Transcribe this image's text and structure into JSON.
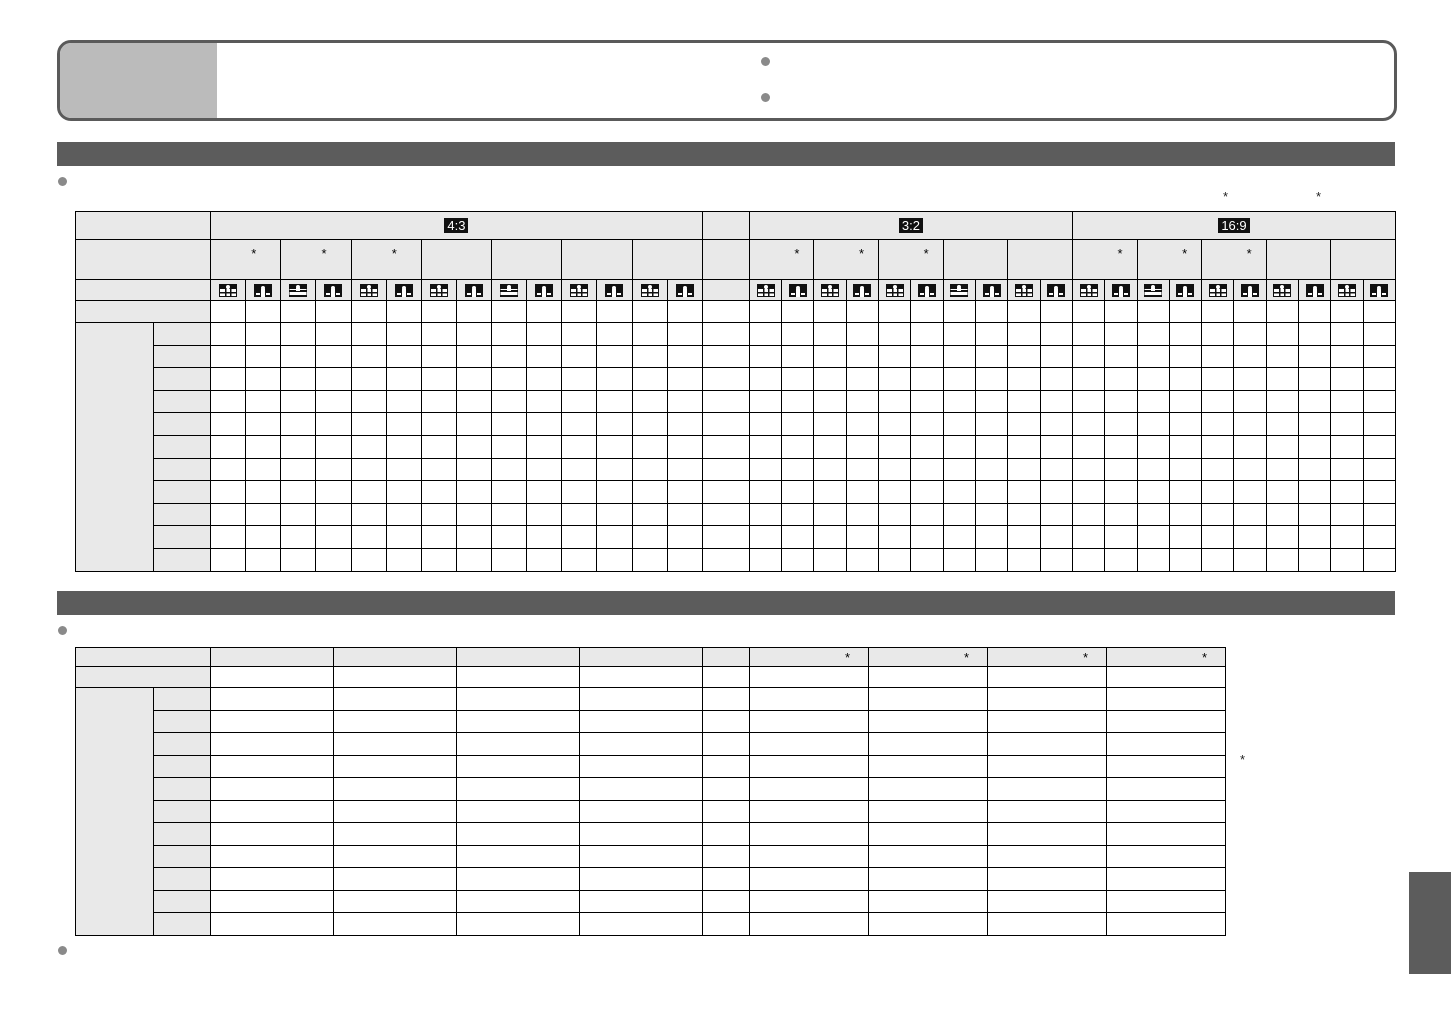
{
  "top_box": {
    "bullets": 2
  },
  "section1": {
    "bar_color": "#5c5c5c",
    "note_bullet": true,
    "footnote_marks": [
      "*",
      "*"
    ],
    "table": {
      "aspect_groups": [
        {
          "label": "4:3",
          "groups": [
            {
              "asterisk": "*",
              "icons": [
                "grid-icon",
                "black-icon"
              ]
            },
            {
              "asterisk": "*",
              "icons": [
                "lines-icon",
                "black-icon"
              ]
            },
            {
              "asterisk": "*",
              "icons": [
                "grid-icon",
                "black-icon"
              ]
            },
            {
              "asterisk": "",
              "icons": [
                "grid-icon",
                "black-icon"
              ]
            },
            {
              "asterisk": "",
              "icons": [
                "lines-icon",
                "black-icon"
              ]
            },
            {
              "asterisk": "",
              "icons": [
                "grid-icon",
                "black-icon"
              ]
            },
            {
              "asterisk": "",
              "icons": [
                "grid-icon",
                "black-icon"
              ]
            }
          ]
        },
        {
          "label": "3:2",
          "groups": [
            {
              "asterisk": "*",
              "icons": [
                "grid-icon",
                "black-icon"
              ]
            },
            {
              "asterisk": "*",
              "icons": [
                "grid-icon",
                "black-icon"
              ]
            },
            {
              "asterisk": "*",
              "icons": [
                "grid-icon",
                "black-icon"
              ]
            },
            {
              "asterisk": "",
              "icons": [
                "lines-icon",
                "black-icon"
              ]
            },
            {
              "asterisk": "",
              "icons": [
                "grid-icon",
                "black-icon"
              ]
            }
          ]
        },
        {
          "label": "16:9",
          "groups": [
            {
              "asterisk": "*",
              "icons": [
                "grid-icon",
                "black-icon"
              ]
            },
            {
              "asterisk": "*",
              "icons": [
                "lines-icon",
                "black-icon"
              ]
            },
            {
              "asterisk": "*",
              "icons": [
                "grid-icon",
                "black-icon"
              ]
            },
            {
              "asterisk": "",
              "icons": [
                "grid-icon",
                "black-icon"
              ]
            },
            {
              "asterisk": "",
              "icons": [
                "grid-icon",
                "black-icon"
              ]
            }
          ]
        }
      ],
      "body_rows": 11
    }
  },
  "section2": {
    "bar_color": "#5c5c5c",
    "table": {
      "header_asterisks": [
        "",
        "",
        "",
        "",
        "",
        "*",
        "*",
        "*",
        "*"
      ],
      "body_rows": 11
    },
    "side_footnote_mark": "*"
  },
  "side_tab_color": "#5c5c5c"
}
